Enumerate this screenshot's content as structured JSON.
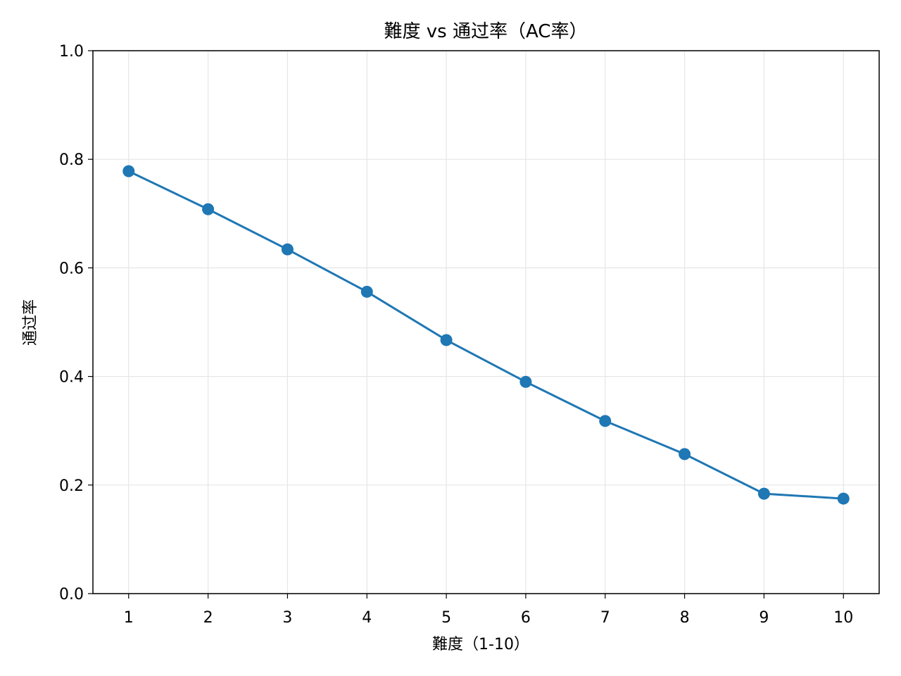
{
  "chart_data": {
    "type": "line",
    "title": "難度 vs 通过率（AC率）",
    "xlabel": "難度（1-10）",
    "ylabel": "通过率",
    "x": [
      1,
      2,
      3,
      4,
      5,
      6,
      7,
      8,
      9,
      10
    ],
    "series": [
      {
        "values": [
          0.778,
          0.708,
          0.634,
          0.556,
          0.467,
          0.39,
          0.318,
          0.257,
          0.184,
          0.175
        ],
        "color": "#1f77b4",
        "marker": "circle"
      }
    ],
    "xticks": [
      "1",
      "2",
      "3",
      "4",
      "5",
      "6",
      "7",
      "8",
      "9",
      "10"
    ],
    "yticks": [
      "0.0",
      "0.2",
      "0.4",
      "0.6",
      "0.8",
      "1.0"
    ],
    "xlim": [
      0.55,
      10.45
    ],
    "ylim": [
      0,
      1
    ],
    "grid": true
  }
}
